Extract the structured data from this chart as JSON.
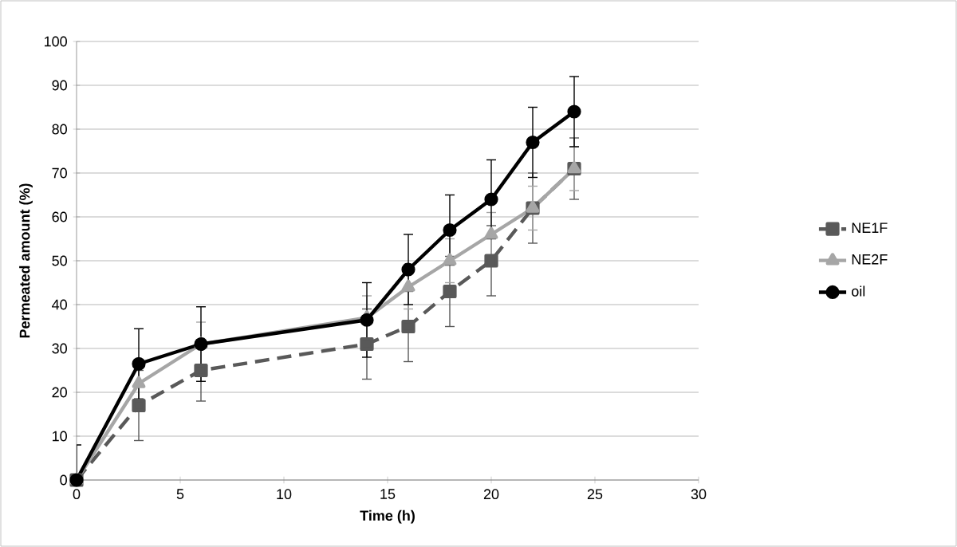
{
  "chart_data": {
    "type": "line",
    "xlabel": "Time (h)",
    "ylabel": "Permeated amount (%)",
    "x": [
      0,
      3,
      6,
      14,
      16,
      18,
      20,
      22,
      24
    ],
    "series": [
      {
        "name": "NE1F",
        "color": "#595959",
        "marker": "square",
        "line_style": "dashed",
        "values": [
          0,
          17,
          25,
          31,
          35,
          43,
          50,
          62,
          71
        ],
        "errors": [
          1,
          8,
          7,
          8,
          8,
          8,
          8,
          8,
          7
        ]
      },
      {
        "name": "NE2F",
        "color": "#a6a6a6",
        "marker": "triangle",
        "line_style": "solid",
        "values": [
          0,
          22,
          31,
          37,
          44,
          50,
          56,
          62,
          71
        ],
        "errors": [
          1,
          null,
          5,
          5,
          5,
          5,
          5,
          5,
          5
        ]
      },
      {
        "name": "oil",
        "color": "#000000",
        "marker": "circle",
        "line_style": "solid",
        "values": [
          0,
          26.5,
          31,
          36.5,
          48,
          57,
          64,
          77,
          84
        ],
        "errors": [
          8,
          8,
          8.5,
          8.5,
          8,
          8,
          9,
          8,
          8
        ]
      }
    ],
    "xlim": [
      0,
      30
    ],
    "xticks": [
      0,
      5,
      10,
      15,
      20,
      25,
      30
    ],
    "ylim": [
      0,
      100
    ],
    "yticks": [
      0,
      10,
      20,
      30,
      40,
      50,
      60,
      70,
      80,
      90,
      100
    ],
    "grid": "y",
    "legend": "right"
  }
}
